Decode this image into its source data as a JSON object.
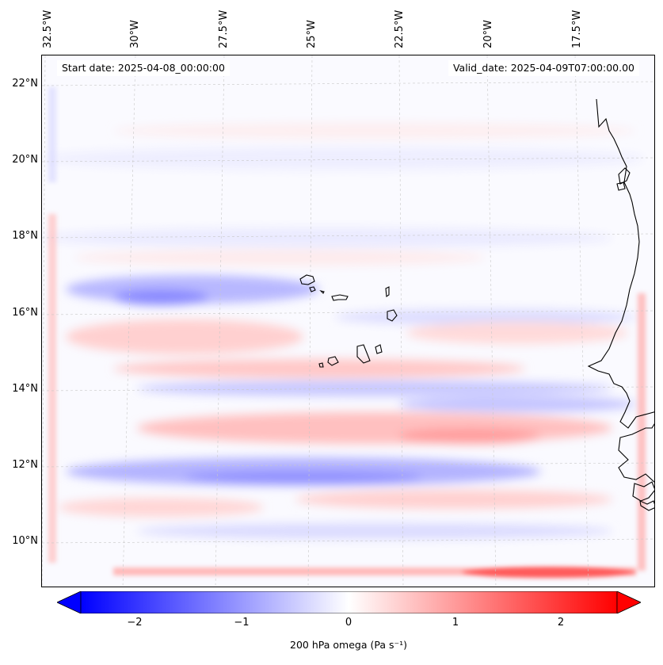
{
  "map": {
    "title_left": "Start date: 2025-04-08_00:00:00",
    "title_right": "Valid_date: 2025-04-09T07:00:00.00",
    "lon_labels": [
      "32.5°W",
      "30°W",
      "27.5°W",
      "25°W",
      "22.5°W",
      "20°W",
      "17.5°W"
    ],
    "lat_labels": [
      "22°N",
      "20°N",
      "18°N",
      "16°N",
      "14°N",
      "12°N",
      "10°N"
    ],
    "lon_range": [
      -33.0,
      -15.5
    ],
    "lat_range": [
      8.9,
      22.8
    ],
    "colors": {
      "negative": "#0000ff",
      "neutral": "#ffffff",
      "positive": "#ff0000",
      "coastline": "#000000",
      "gridline": "#c8c8c8"
    }
  },
  "colorbar": {
    "label": "200 hPa omega (Pa s⁻¹)",
    "ticks": [
      "−2",
      "−1",
      "0",
      "1",
      "2"
    ],
    "tick_values": [
      -2,
      -1,
      0,
      1,
      2
    ],
    "range": [
      -2.5,
      2.5
    ]
  }
}
